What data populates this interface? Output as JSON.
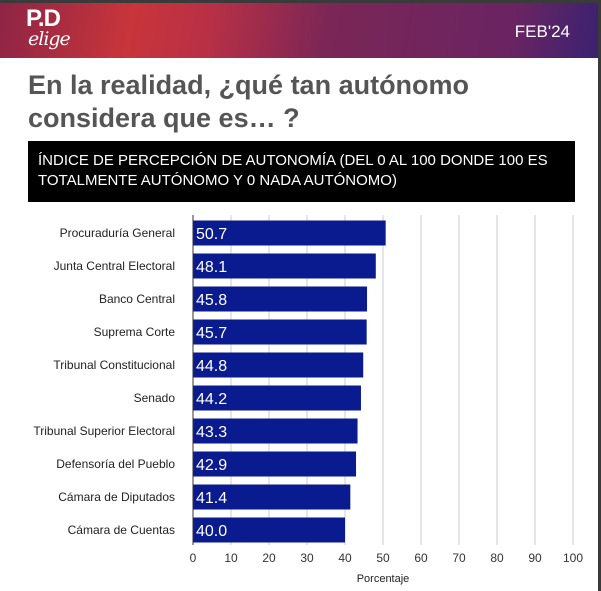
{
  "header": {
    "logo_text": "PD elige",
    "date": "FEB'24",
    "colors": [
      "#c8353a",
      "#7a2656",
      "#3a2270"
    ]
  },
  "title": "En la realidad, ¿qué tan autónomo considera que es… ?",
  "chart_data": {
    "type": "bar",
    "orientation": "horizontal",
    "title": "ÍNDICE DE PERCEPCIÓN DE AUTONOMÍA (DEL 0 AL 100 DONDE 100 ES TOTALMENTE AUTÓNOMO Y 0 NADA AUTÓNOMO)",
    "categories": [
      "Procuraduría General",
      "Junta Central Electoral",
      "Banco Central",
      "Suprema Corte",
      "Tribunal Constitucional",
      "Senado",
      "Tribunal Superior Electoral",
      "Defensoría del Pueblo",
      "Cámara de Diputados",
      "Cámara de Cuentas"
    ],
    "values": [
      50.7,
      48.1,
      45.8,
      45.7,
      44.8,
      44.2,
      43.3,
      42.9,
      41.4,
      40.0
    ],
    "data_labels": [
      "50.7",
      "48.1",
      "45.8",
      "45.7",
      "44.8",
      "44.2",
      "43.3",
      "42.9",
      "41.4",
      "40.0"
    ],
    "xlabel": "Porcentaje",
    "ylabel": "",
    "xlim": [
      0,
      100
    ],
    "xticks": [
      "0",
      "10",
      "20",
      "30",
      "40",
      "50",
      "60",
      "70",
      "80",
      "90",
      "100"
    ],
    "grid": "vertical",
    "bar_color": "#0a1a8f"
  }
}
